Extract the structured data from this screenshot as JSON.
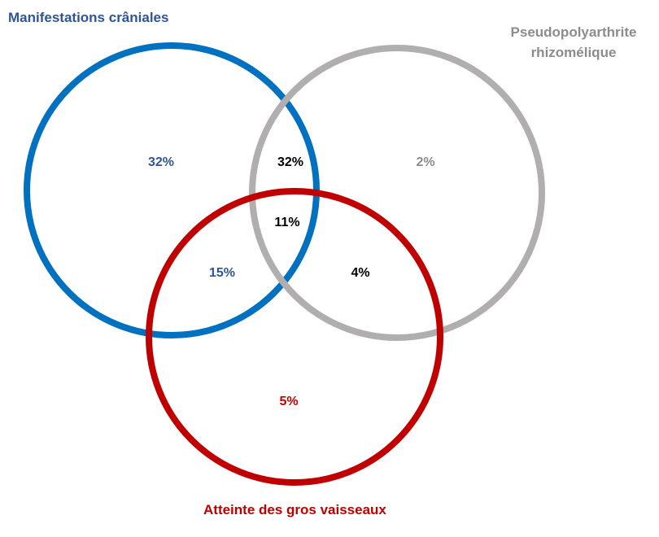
{
  "colors": {
    "cranial": "#0070c0",
    "cranial_text": "#2f5597",
    "ppr": "#b0aeae",
    "ppr_text": "#8c8c8c",
    "large_vessels": "#c00000",
    "overlap_text": "#000000"
  },
  "sets": {
    "cranial": {
      "label": "Manifestations crâniales"
    },
    "ppr": {
      "label_line1": "Pseudopolyarthrite",
      "label_line2": "rhizomélique"
    },
    "large_vessels": {
      "label": "Atteinte des gros vaisseaux"
    }
  },
  "regions": {
    "cranial_only": "32%",
    "cranial_ppr": "32%",
    "ppr_only": "2%",
    "all_three": "11%",
    "cranial_large": "15%",
    "ppr_large": "4%",
    "large_only": "5%"
  }
}
